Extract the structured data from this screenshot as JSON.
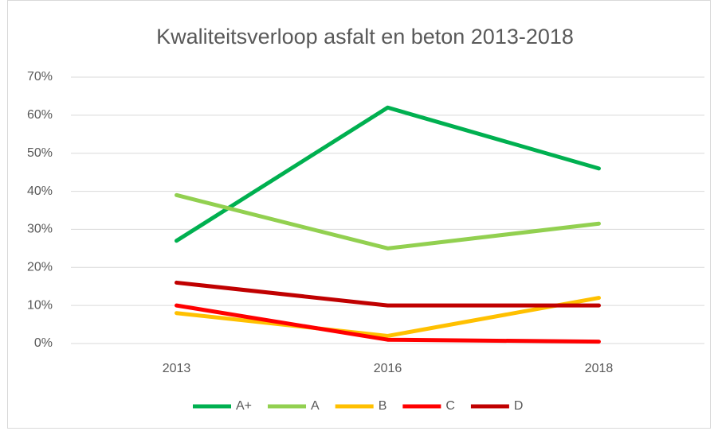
{
  "chart_data": {
    "type": "line",
    "title": "Kwaliteitsverloop asfalt en beton 2013-2018",
    "categories": [
      "2013",
      "2016",
      "2018"
    ],
    "series": [
      {
        "name": "A+",
        "color": "#00b050",
        "values": [
          27,
          62,
          46
        ]
      },
      {
        "name": "A",
        "color": "#92d050",
        "values": [
          39,
          25,
          31.5
        ]
      },
      {
        "name": "B",
        "color": "#ffc000",
        "values": [
          8,
          2,
          12
        ]
      },
      {
        "name": "C",
        "color": "#ff0000",
        "values": [
          10,
          1,
          0.5
        ]
      },
      {
        "name": "D",
        "color": "#c00000",
        "values": [
          16,
          10,
          10
        ]
      }
    ],
    "ylim": [
      0,
      70
    ],
    "yticks": [
      {
        "value": 0,
        "label": "0%"
      },
      {
        "value": 10,
        "label": "10%"
      },
      {
        "value": 20,
        "label": "20%"
      },
      {
        "value": 30,
        "label": "30%"
      },
      {
        "value": 40,
        "label": "40%"
      },
      {
        "value": 50,
        "label": "50%"
      },
      {
        "value": 60,
        "label": "60%"
      },
      {
        "value": 70,
        "label": "70%"
      }
    ],
    "grid": true,
    "legend": "bottom"
  }
}
